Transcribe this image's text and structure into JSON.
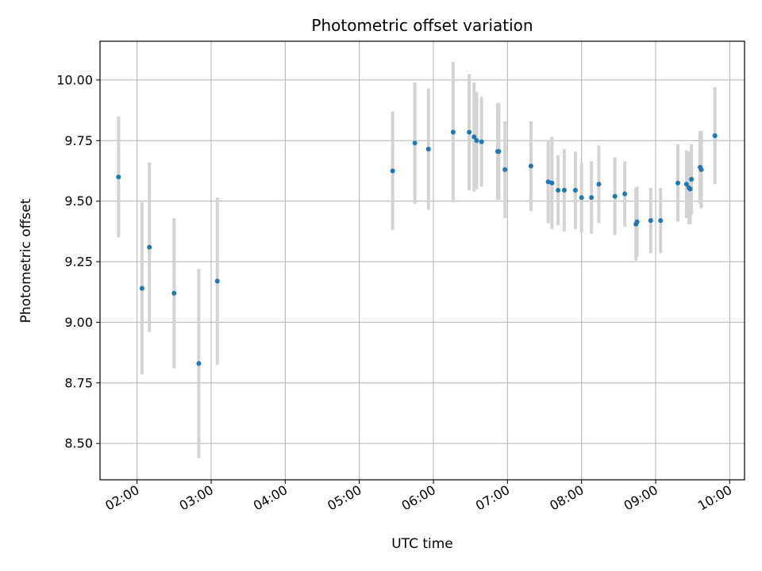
{
  "chart_data": {
    "type": "scatter",
    "title": "Photometric offset variation",
    "xlabel": "UTC time",
    "ylabel": "Photometric offset",
    "x_tick_labels": [
      "02:00",
      "03:00",
      "04:00",
      "05:00",
      "06:00",
      "07:00",
      "08:00",
      "09:00",
      "10:00"
    ],
    "y_tick_labels": [
      "8.50",
      "8.75",
      "9.00",
      "9.25",
      "9.50",
      "9.75",
      "10.00"
    ],
    "xlim": [
      "01:30",
      "10:12"
    ],
    "ylim": [
      8.35,
      10.16
    ],
    "grid": true,
    "colors": {
      "points": "#1f77b4",
      "error_bars": "#d3d3d3",
      "grid": "#b0b0b0"
    },
    "points": [
      {
        "x": "01:45",
        "y": 9.6,
        "err": 0.25
      },
      {
        "x": "02:04",
        "y": 9.14,
        "err": 0.355
      },
      {
        "x": "02:10",
        "y": 9.31,
        "err": 0.35
      },
      {
        "x": "02:30",
        "y": 9.12,
        "err": 0.31
      },
      {
        "x": "02:50",
        "y": 8.83,
        "err": 0.39
      },
      {
        "x": "03:05",
        "y": 9.17,
        "err": 0.345
      },
      {
        "x": "05:27",
        "y": 9.625,
        "err": 0.245
      },
      {
        "x": "05:45",
        "y": 9.74,
        "err": 0.25
      },
      {
        "x": "05:56",
        "y": 9.715,
        "err": 0.25
      },
      {
        "x": "06:16",
        "y": 9.785,
        "err": 0.29
      },
      {
        "x": "06:29",
        "y": 9.785,
        "err": 0.24
      },
      {
        "x": "06:33",
        "y": 9.765,
        "err": 0.225
      },
      {
        "x": "06:35",
        "y": 9.75,
        "err": 0.2
      },
      {
        "x": "06:39",
        "y": 9.745,
        "err": 0.185
      },
      {
        "x": "06:52",
        "y": 9.705,
        "err": 0.2
      },
      {
        "x": "06:53",
        "y": 9.705,
        "err": 0.2
      },
      {
        "x": "06:58",
        "y": 9.63,
        "err": 0.2
      },
      {
        "x": "07:19",
        "y": 9.645,
        "err": 0.185
      },
      {
        "x": "07:33",
        "y": 9.58,
        "err": 0.17
      },
      {
        "x": "07:36",
        "y": 9.575,
        "err": 0.19
      },
      {
        "x": "07:41",
        "y": 9.545,
        "err": 0.145
      },
      {
        "x": "07:46",
        "y": 9.545,
        "err": 0.17
      },
      {
        "x": "07:55",
        "y": 9.545,
        "err": 0.16
      },
      {
        "x": "08:00",
        "y": 9.515,
        "err": 0.145
      },
      {
        "x": "08:08",
        "y": 9.515,
        "err": 0.15
      },
      {
        "x": "08:14",
        "y": 9.57,
        "err": 0.16
      },
      {
        "x": "08:27",
        "y": 9.52,
        "err": 0.16
      },
      {
        "x": "08:35",
        "y": 9.53,
        "err": 0.135
      },
      {
        "x": "08:44",
        "y": 9.405,
        "err": 0.15
      },
      {
        "x": "08:45",
        "y": 9.415,
        "err": 0.145
      },
      {
        "x": "08:56",
        "y": 9.42,
        "err": 0.135
      },
      {
        "x": "09:04",
        "y": 9.42,
        "err": 0.135
      },
      {
        "x": "09:18",
        "y": 9.575,
        "err": 0.16
      },
      {
        "x": "09:25",
        "y": 9.57,
        "err": 0.14
      },
      {
        "x": "09:27",
        "y": 9.555,
        "err": 0.15
      },
      {
        "x": "09:28",
        "y": 9.55,
        "err": 0.145
      },
      {
        "x": "09:29",
        "y": 9.59,
        "err": 0.145
      },
      {
        "x": "09:36",
        "y": 9.64,
        "err": 0.15
      },
      {
        "x": "09:37",
        "y": 9.63,
        "err": 0.16
      },
      {
        "x": "09:48",
        "y": 9.77,
        "err": 0.2
      }
    ]
  }
}
